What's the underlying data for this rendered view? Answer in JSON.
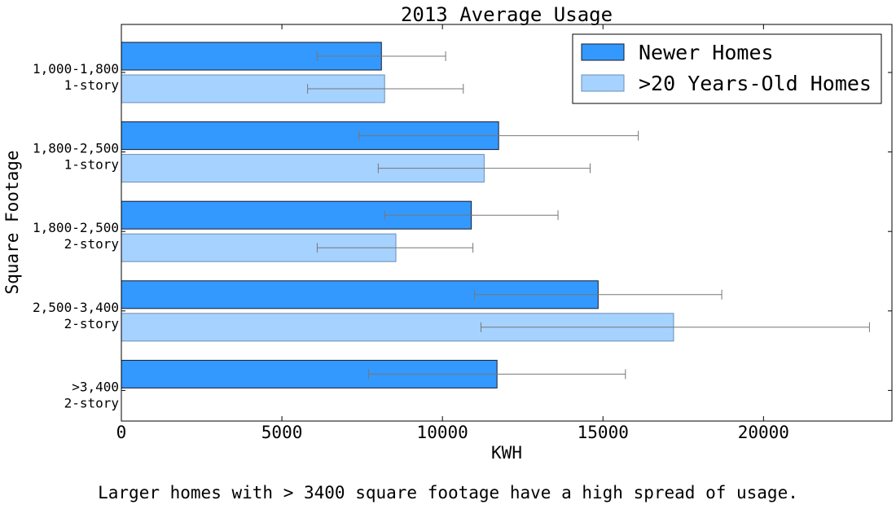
{
  "chart_data": {
    "type": "bar",
    "orientation": "horizontal",
    "title": "2013 Average Usage",
    "xlabel": "KWH",
    "ylabel": "Square Footage",
    "xlim": [
      0,
      24000
    ],
    "xticks": [
      0,
      5000,
      10000,
      15000,
      20000
    ],
    "xtick_labels": [
      "0",
      "5000",
      "10000",
      "15000",
      "20000"
    ],
    "categories": [
      [
        "1,000-1,800",
        "1-story"
      ],
      [
        "1,800-2,500",
        "1-story"
      ],
      [
        "1,800-2,500",
        "2-story"
      ],
      [
        "2,500-3,400",
        "2-story"
      ],
      [
        ">3,400",
        "2-story"
      ]
    ],
    "series": [
      {
        "name": "Newer Homes",
        "color": "#3399ff",
        "values": [
          8100,
          11750,
          10900,
          14850,
          11700
        ],
        "error_low": [
          6100,
          7400,
          8200,
          11000,
          7700
        ],
        "error_high": [
          10100,
          16100,
          13600,
          18700,
          15700
        ]
      },
      {
        "name": ">20 Years-Old Homes",
        "color": "#a6d2ff",
        "values": [
          8200,
          11300,
          8550,
          17200,
          null
        ],
        "error_low": [
          5800,
          8000,
          6100,
          11200,
          null
        ],
        "error_high": [
          10650,
          14600,
          10950,
          23300,
          null
        ]
      }
    ],
    "legend_position": "top-right",
    "grid": false
  },
  "caption": "Larger homes with > 3400 square footage have a high spread of usage."
}
